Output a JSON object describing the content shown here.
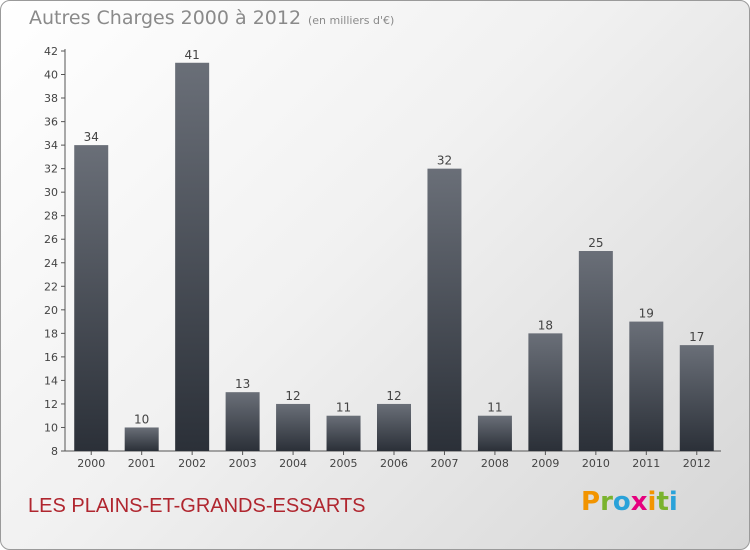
{
  "header": {
    "title": "Autres Charges 2000 à 2012",
    "unit_note": "(en milliers d'€)"
  },
  "footer": {
    "town": "LES PLAINS-ET-GRANDS-ESSARTS",
    "logo_letters": [
      "P",
      "r",
      "o",
      "x",
      "i",
      "t",
      "i"
    ],
    "logo_colors": [
      "#f29400",
      "#7ab32e",
      "#2aa2d9",
      "#e6007e",
      "#f29400",
      "#7ab32e",
      "#2aa2d9"
    ]
  },
  "colors": {
    "bar_top": "#6a6f78",
    "bar_bottom": "#2b3038",
    "axis": "#555555",
    "text": "#444444",
    "title": "#8a8a8a",
    "town": "#b0262f"
  },
  "chart_data": {
    "type": "bar",
    "title": "Autres Charges 2000 à 2012",
    "subtitle": "(en milliers d'€)",
    "xlabel": "",
    "ylabel": "",
    "categories": [
      "2000",
      "2001",
      "2002",
      "2003",
      "2004",
      "2005",
      "2006",
      "2007",
      "2008",
      "2009",
      "2010",
      "2011",
      "2012"
    ],
    "values": [
      34,
      10,
      41,
      13,
      12,
      11,
      12,
      32,
      11,
      18,
      25,
      19,
      17
    ],
    "ylim": [
      8,
      42
    ],
    "yticks": [
      8,
      10,
      12,
      14,
      16,
      18,
      20,
      22,
      24,
      26,
      28,
      30,
      32,
      34,
      36,
      38,
      40,
      42
    ],
    "grid": false,
    "legend": "none"
  }
}
